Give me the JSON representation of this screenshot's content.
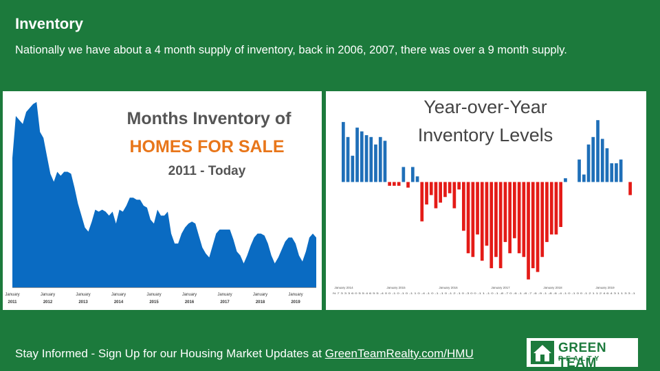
{
  "slide": {
    "title": "Inventory",
    "subtitle": "Nationally we have about a 4 month supply of inventory, back in 2006, 2007, there was over a 9 month supply.",
    "footer_text": "Stay Informed - Sign Up for our Housing Market Updates at ",
    "footer_link": "GreenTeamRealty.com/HMU"
  },
  "logo": {
    "line1": "GREEN TEAM",
    "line2": "REALTY",
    "icon": "house-icon"
  },
  "colors": {
    "background": "#1c7a3c",
    "area": "#0a6bc2",
    "positive": "#1f6fb8",
    "negative": "#e41b17",
    "title_gray": "#555555",
    "title_orange": "#e8761a"
  },
  "chart_data": [
    {
      "type": "area",
      "title_line1": "Months Inventory of",
      "title_line2": "HOMES FOR SALE",
      "title_line3": "2011 - Today",
      "x_month_labels": [
        "January",
        "January",
        "January",
        "January",
        "January",
        "January",
        "January",
        "January",
        "January"
      ],
      "x_year_labels": [
        "2011",
        "2012",
        "2013",
        "2014",
        "2015",
        "2016",
        "2017",
        "2018",
        "2019"
      ],
      "values": [
        6.5,
        8.6,
        8.4,
        8.2,
        8.8,
        9.0,
        9.2,
        9.3,
        7.8,
        7.5,
        6.6,
        5.7,
        5.3,
        5.8,
        5.6,
        5.8,
        5.8,
        5.7,
        5.0,
        4.2,
        3.6,
        3.0,
        2.8,
        3.3,
        3.9,
        3.8,
        3.9,
        3.8,
        3.6,
        3.8,
        3.2,
        3.9,
        3.8,
        4.1,
        4.5,
        4.5,
        4.4,
        4.4,
        4.1,
        4.0,
        3.4,
        3.2,
        3.9,
        3.6,
        3.6,
        3.8,
        2.7,
        2.2,
        2.2,
        2.7,
        3.0,
        3.2,
        3.3,
        3.2,
        2.6,
        2.0,
        1.7,
        1.5,
        2.1,
        2.7,
        2.9,
        2.9,
        2.9,
        2.9,
        2.4,
        1.8,
        1.6,
        1.2,
        1.6,
        2.1,
        2.5,
        2.7,
        2.7,
        2.6,
        2.2,
        1.6,
        1.2,
        1.5,
        1.9,
        2.3,
        2.5,
        2.5,
        2.2,
        1.6,
        1.3,
        1.8,
        2.5,
        2.7,
        2.5
      ],
      "ylim": [
        0,
        9.5
      ]
    },
    {
      "type": "bar",
      "title_line1": "Year-over-Year",
      "title_line2": "Inventory Levels",
      "x_labels": [
        "January 2014",
        "January 2015",
        "January 2016",
        "January 2017",
        "January 2018",
        "January 2019"
      ],
      "values": [
        16,
        12,
        7,
        14.5,
        13.5,
        12.5,
        12,
        10,
        12,
        11,
        -1,
        -1,
        -1,
        4,
        -1.5,
        4,
        1.5,
        -10.5,
        -6,
        -3.5,
        -7,
        -5.5,
        -4,
        -3,
        -7,
        -2,
        -13,
        -19,
        -20,
        -14,
        -21,
        -17,
        -23,
        -20,
        -23,
        -16,
        -19,
        -15,
        -19,
        -20,
        -26,
        -23,
        -24,
        -20,
        -16,
        -14,
        -14,
        -12,
        1,
        0,
        0,
        6,
        2,
        10,
        12,
        16.5,
        11.5,
        9,
        5,
        5,
        6,
        0,
        -3.5
      ],
      "tick_row": "N 7 3 3 3 6 0 5 5 4 6 5 5 -4 0 0 -1 0 -1 0 -1 1 0 -4 -1 0 -1 -1 0 -1 2 -1 0 -3 0 0 -1 1 -1 0 -1 -8 -7 0 -6 -1 -8 -7 -6 -9 -1 -8 -6 -4 -1 0 -1 0 0 -1 2 1 1 2 4 6 4 3 1 1 3 3 -1",
      "ylim": [
        -27,
        18
      ]
    }
  ]
}
